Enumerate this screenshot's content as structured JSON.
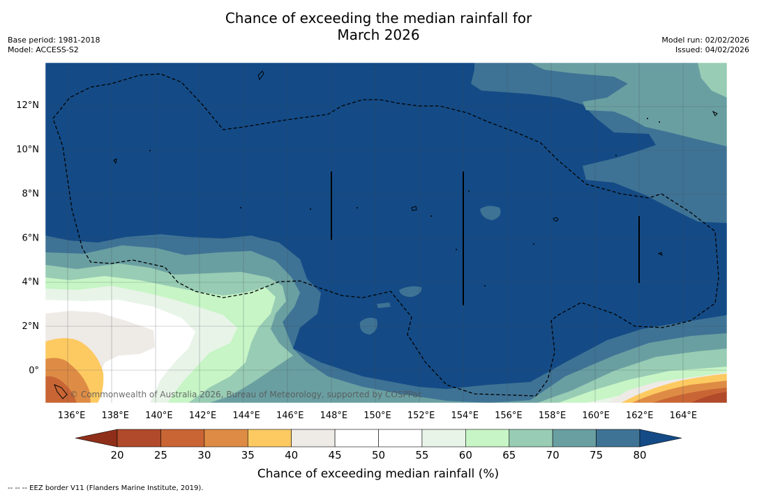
{
  "title": {
    "line1": "Chance of exceeding the median rainfall for",
    "line2": "March 2026"
  },
  "base_period": "Base period: 1981-2018",
  "model": "Model: ACCESS-S2",
  "model_run": "Model run: 02/02/2026",
  "issued": "Issued: 04/02/2026",
  "copyright": "© Commonwealth of Australia 2026, Bureau of Meteorology, supported by COSPPac",
  "footnote": "--  --  -- EEZ border V11 (Flanders Marine Institute, 2019).",
  "colors": {
    "c_lt20": "#8f2f1a",
    "c20": "#b04a2a",
    "c25": "#c96535",
    "c30": "#de8c45",
    "c35": "#fdca62",
    "c40": "#eeeae6",
    "c45": "#ffffff",
    "c50": "#ffffff",
    "c55": "#e8f4e8",
    "c60": "#c7f5c6",
    "c65": "#98ccb4",
    "c70": "#6a9fa2",
    "c75": "#3f7395",
    "c80": "#144b86"
  },
  "chart_data": {
    "type": "map",
    "title": "Chance of exceeding the median rainfall for March 2026",
    "lon_ticks": [
      "136°E",
      "138°E",
      "140°E",
      "142°E",
      "144°E",
      "146°E",
      "148°E",
      "150°E",
      "152°E",
      "154°E",
      "156°E",
      "158°E",
      "160°E",
      "162°E",
      "164°E"
    ],
    "lon_values": [
      136,
      138,
      140,
      142,
      144,
      146,
      148,
      150,
      152,
      154,
      156,
      158,
      160,
      162,
      164
    ],
    "lat_ticks": [
      "12°N",
      "10°N",
      "8°N",
      "6°N",
      "4°N",
      "2°N",
      "0°"
    ],
    "lat_values": [
      12,
      10,
      8,
      6,
      4,
      2,
      0
    ],
    "lon_range": [
      134.8,
      166.0
    ],
    "lat_range": [
      -1.5,
      13.9
    ],
    "colorbar": {
      "label": "Chance of exceeding median rainfall (%)",
      "ticks": [
        "20",
        "25",
        "30",
        "35",
        "40",
        "45",
        "50",
        "55",
        "60",
        "65",
        "70",
        "75",
        "80"
      ],
      "values": [
        20,
        25,
        30,
        35,
        40,
        45,
        50,
        55,
        60,
        65,
        70,
        75,
        80
      ]
    },
    "legend": "EEZ border V11 (Flanders Marine Institute, 2019)"
  }
}
